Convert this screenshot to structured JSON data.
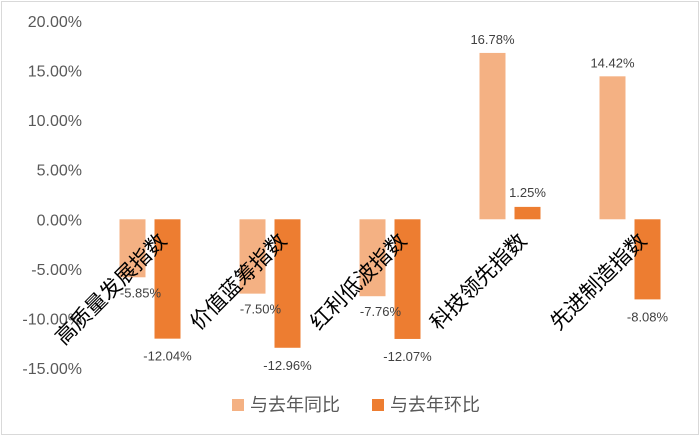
{
  "chart_data": {
    "type": "bar",
    "categories": [
      "高质量发展指数",
      "价值蓝筹指数",
      "红利低波指数",
      "科技领先指数",
      "先进制造指数"
    ],
    "series": [
      {
        "name": "与去年同比",
        "color": "#F4B183",
        "values": [
          -5.85,
          -7.5,
          -7.76,
          16.78,
          14.42
        ],
        "labels": [
          "-5.85%",
          "-7.50%",
          "-7.76%",
          "16.78%",
          "14.42%"
        ]
      },
      {
        "name": "与去年环比",
        "color": "#ED7D31",
        "values": [
          -12.04,
          -12.96,
          -12.07,
          1.25,
          -8.08
        ],
        "labels": [
          "-12.04%",
          "-12.96%",
          "-12.07%",
          "1.25%",
          "-8.08%"
        ]
      }
    ],
    "ylim": [
      -15,
      20
    ],
    "yticks": [
      20,
      15,
      10,
      5,
      0,
      -5,
      -10,
      -15
    ],
    "ytick_labels": [
      "20.00%",
      "15.00%",
      "10.00%",
      "5.00%",
      "0.00%",
      "-5.00%",
      "-10.00%",
      "-15.00%"
    ],
    "title": "",
    "xlabel": "",
    "ylabel": "",
    "grid": false,
    "legend": "bottom"
  }
}
